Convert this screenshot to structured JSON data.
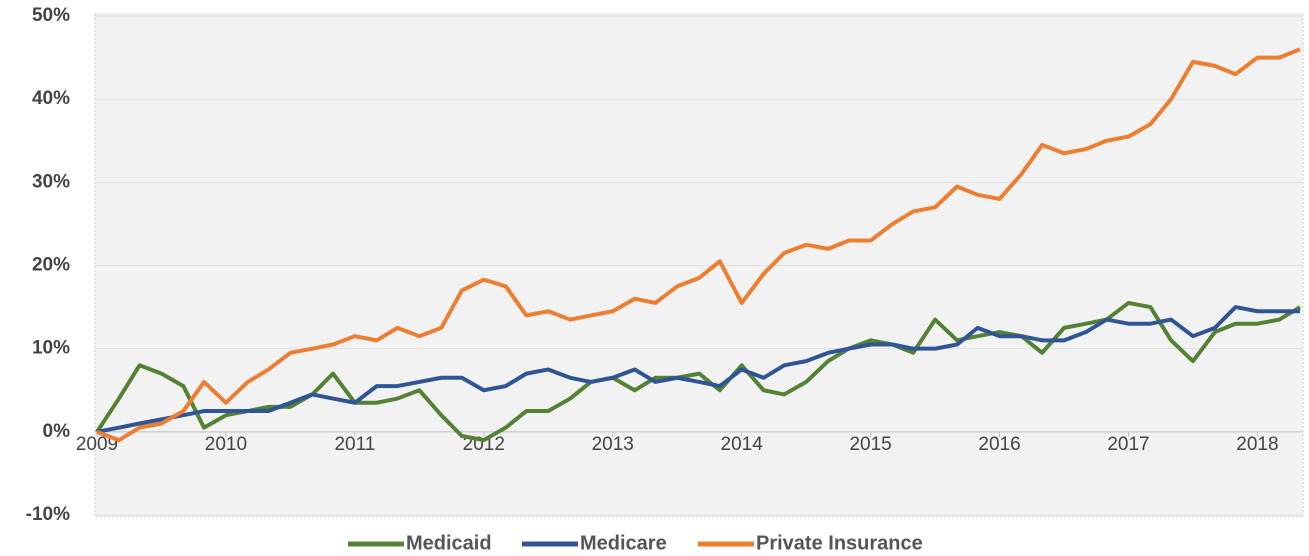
{
  "chart_data": {
    "type": "line",
    "x": [
      2009,
      2009.17,
      2009.33,
      2009.5,
      2009.67,
      2009.83,
      2010,
      2010.17,
      2010.33,
      2010.5,
      2010.67,
      2010.83,
      2011,
      2011.17,
      2011.33,
      2011.5,
      2011.67,
      2011.83,
      2012,
      2012.17,
      2012.33,
      2012.5,
      2012.67,
      2012.83,
      2013,
      2013.17,
      2013.33,
      2013.5,
      2013.67,
      2013.83,
      2014,
      2014.17,
      2014.33,
      2014.5,
      2014.67,
      2014.83,
      2015,
      2015.17,
      2015.33,
      2015.5,
      2015.67,
      2015.83,
      2016,
      2016.17,
      2016.33,
      2016.5,
      2016.67,
      2016.83,
      2017,
      2017.17,
      2017.33,
      2017.5,
      2017.67,
      2017.83,
      2018,
      2018.17,
      2018.33
    ],
    "series": [
      {
        "name": "Medicaid",
        "color": "#548235",
        "values": [
          0,
          4,
          8,
          7,
          5.5,
          0.5,
          2,
          2.5,
          3,
          3,
          4.5,
          7,
          3.5,
          3.5,
          4,
          5,
          2,
          -0.5,
          -1,
          0.5,
          2.5,
          2.5,
          4,
          6,
          6.5,
          5,
          6.5,
          6.5,
          7,
          5,
          8,
          5,
          4.5,
          6,
          8.5,
          10,
          11,
          10.5,
          9.5,
          13.5,
          11,
          11.5,
          12,
          11.5,
          9.5,
          12.5,
          13,
          13.5,
          15.5,
          15,
          11,
          8.5,
          12,
          13,
          13,
          13.5,
          15
        ]
      },
      {
        "name": "Medicare",
        "color": "#2f5597",
        "values": [
          0,
          0.5,
          1,
          1.5,
          2,
          2.5,
          2.5,
          2.5,
          2.5,
          3.5,
          4.5,
          4,
          3.5,
          5.5,
          5.5,
          6,
          6.5,
          6.5,
          5,
          5.5,
          7,
          7.5,
          6.5,
          6,
          6.5,
          7.5,
          6,
          6.5,
          6,
          5.5,
          7.5,
          6.5,
          8,
          8.5,
          9.5,
          10,
          10.5,
          10.5,
          10,
          10,
          10.5,
          12.5,
          11.5,
          11.5,
          11,
          11,
          12,
          13.5,
          13,
          13,
          13.5,
          11.5,
          12.5,
          15,
          14.5,
          14.5,
          14.5
        ]
      },
      {
        "name": "Private Insurance",
        "color": "#ed7d31",
        "values": [
          0,
          -1,
          0.5,
          1,
          2.5,
          6,
          3.5,
          6,
          7.5,
          9.5,
          10,
          10.5,
          11.5,
          11,
          12.5,
          11.5,
          12.5,
          17,
          18.3,
          17.5,
          14,
          14.5,
          13.5,
          14,
          14.5,
          16,
          15.5,
          17.5,
          18.5,
          20.5,
          15.5,
          19,
          21.5,
          22.5,
          22,
          23,
          23,
          25,
          26.5,
          27,
          29.5,
          28.5,
          28,
          31,
          34.5,
          33.5,
          34,
          35,
          35.5,
          37,
          40,
          44.5,
          44,
          43,
          45,
          45,
          46
        ]
      }
    ],
    "xlim": [
      2009,
      2018.33
    ],
    "xticks": [
      2009,
      2010,
      2011,
      2012,
      2013,
      2014,
      2015,
      2016,
      2017,
      2018
    ],
    "ylim": [
      -10,
      50
    ],
    "yticks": [
      {
        "value": -10,
        "label": "-10%"
      },
      {
        "value": 0,
        "label": "0%"
      },
      {
        "value": 10,
        "label": "10%"
      },
      {
        "value": 20,
        "label": "20%"
      },
      {
        "value": 30,
        "label": "30%"
      },
      {
        "value": 40,
        "label": "40%"
      },
      {
        "value": 50,
        "label": "50%"
      }
    ],
    "grid": true,
    "legend": "bottom"
  }
}
